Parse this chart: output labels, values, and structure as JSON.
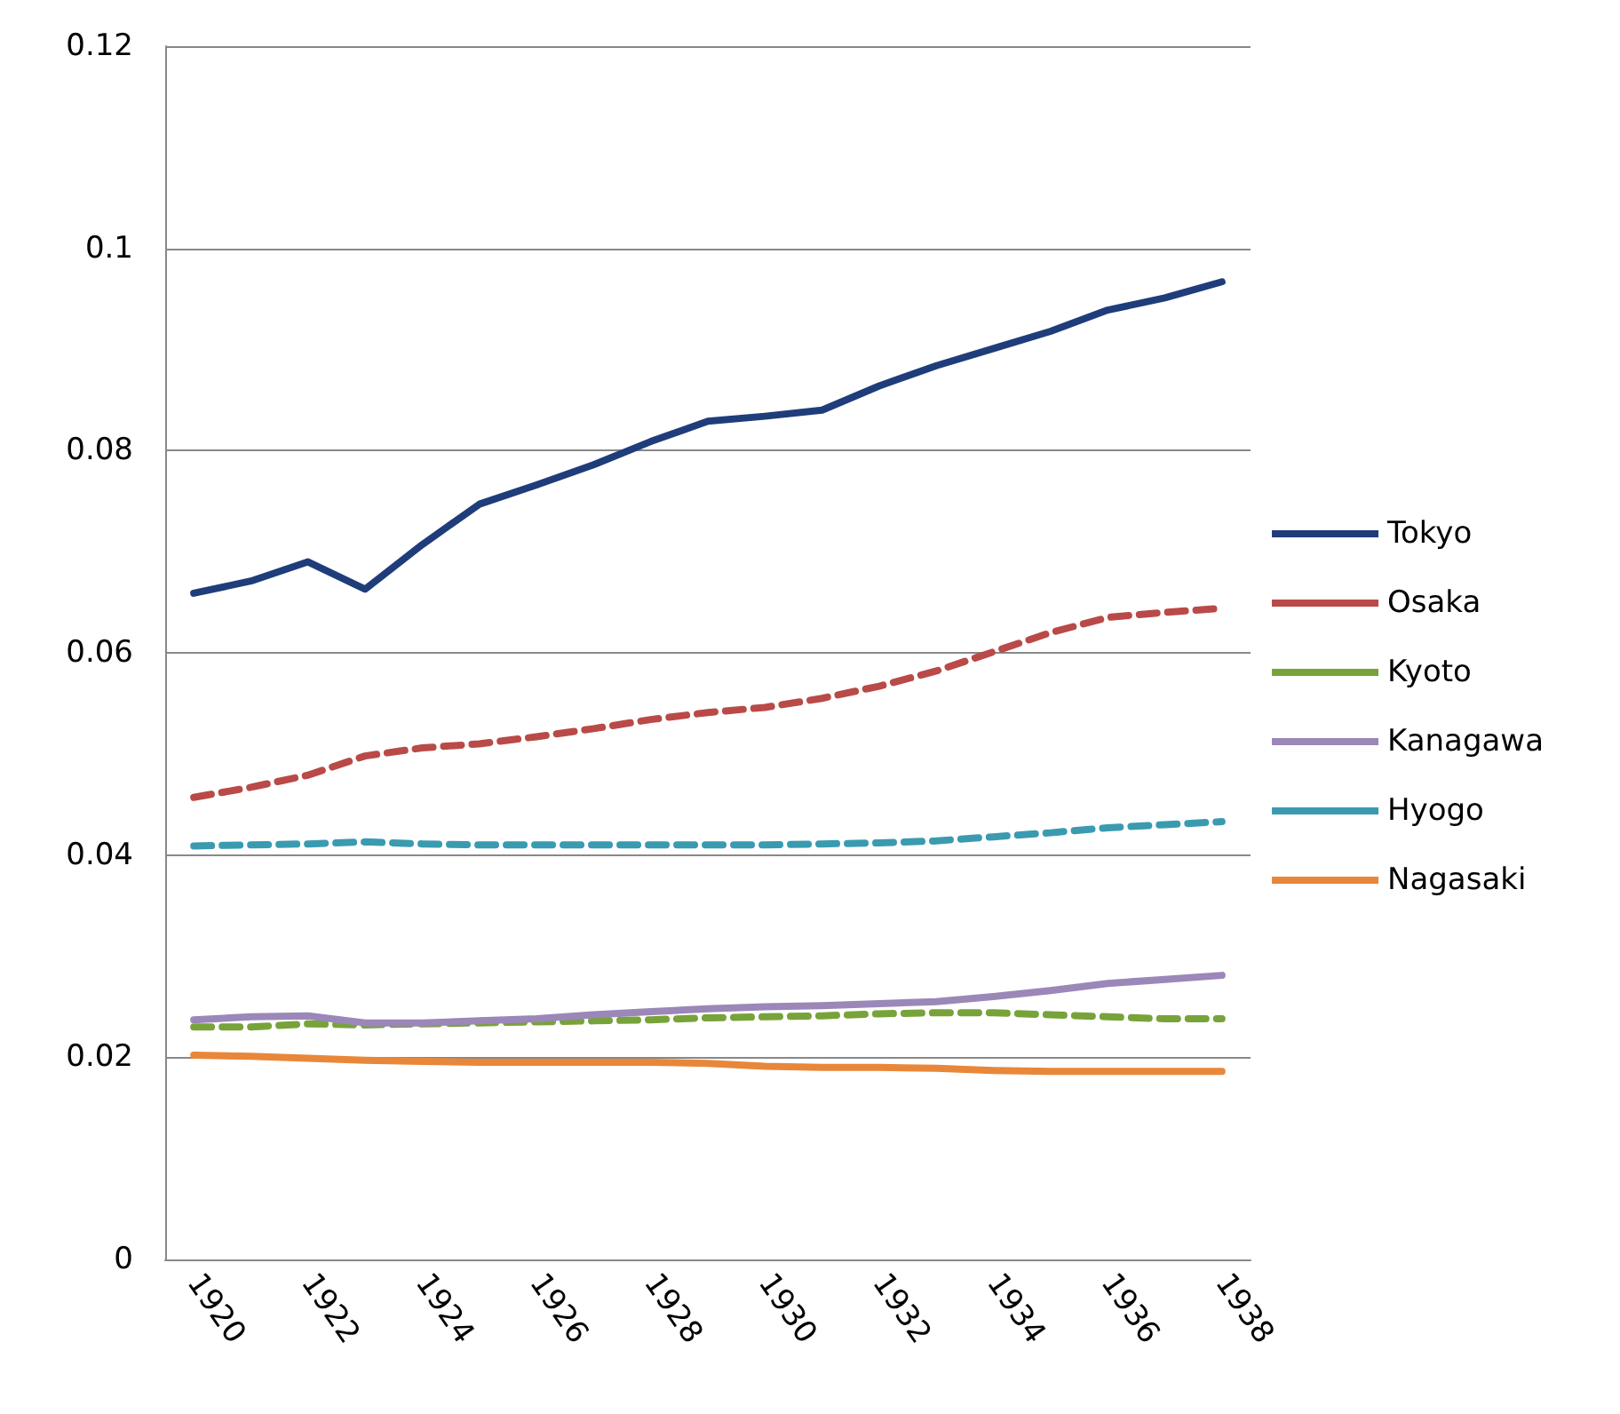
{
  "chart_data": {
    "type": "line",
    "categories": [
      "1920",
      null,
      "1922",
      null,
      "1924",
      null,
      "1926",
      null,
      "1928",
      null,
      "1930",
      null,
      "1932",
      null,
      "1934",
      null,
      "1936",
      null,
      "1938"
    ],
    "series": [
      {
        "name": "Tokyo",
        "color": "#1f3d7a",
        "line_style": "solid",
        "values": [
          0.0659,
          0.0671,
          0.069,
          0.0663,
          0.0707,
          0.0747,
          0.0766,
          0.0786,
          0.0809,
          0.0829,
          0.0834,
          0.084,
          0.0864,
          0.0884,
          0.0901,
          0.0918,
          0.0939,
          0.0951,
          0.0967
        ]
      },
      {
        "name": "Osaka",
        "color": "#b94a48",
        "line_style": "dashed",
        "values": [
          0.0457,
          0.0467,
          0.0479,
          0.0498,
          0.0506,
          0.051,
          0.0517,
          0.0525,
          0.0534,
          0.0541,
          0.0546,
          0.0555,
          0.0567,
          0.0582,
          0.0601,
          0.062,
          0.0635,
          0.064,
          0.0644
        ]
      },
      {
        "name": "Kyoto",
        "color": "#77a33a",
        "line_style": "dashed",
        "values": [
          0.023,
          0.023,
          0.0233,
          0.0232,
          0.0233,
          0.0234,
          0.0235,
          0.0236,
          0.0237,
          0.0239,
          0.024,
          0.0241,
          0.0243,
          0.0244,
          0.0244,
          0.0242,
          0.024,
          0.0238,
          0.0238
        ]
      },
      {
        "name": "Kanagawa",
        "color": "#9b87b8",
        "line_style": "solid",
        "values": [
          0.0237,
          0.024,
          0.0241,
          0.0234,
          0.0234,
          0.0236,
          0.0238,
          0.0242,
          0.0245,
          0.0248,
          0.025,
          0.0251,
          0.0253,
          0.0255,
          0.026,
          0.0266,
          0.0273,
          0.0277,
          0.0281
        ]
      },
      {
        "name": "Hyogo",
        "color": "#3a9bb0",
        "line_style": "dashed",
        "values": [
          0.0409,
          0.041,
          0.0411,
          0.0413,
          0.0411,
          0.041,
          0.041,
          0.041,
          0.041,
          0.041,
          0.041,
          0.0411,
          0.0412,
          0.0414,
          0.0418,
          0.0422,
          0.0427,
          0.043,
          0.0433
        ]
      },
      {
        "name": "Nagasaki",
        "color": "#e8873a",
        "line_style": "solid",
        "values": [
          0.0202,
          0.0201,
          0.0199,
          0.0197,
          0.0196,
          0.0195,
          0.0195,
          0.0195,
          0.0195,
          0.0194,
          0.0191,
          0.019,
          0.019,
          0.0189,
          0.0187,
          0.0186,
          0.0186,
          0.0186,
          0.0186
        ]
      }
    ],
    "ylim": [
      0,
      0.12
    ],
    "yticks": [
      0,
      0.02,
      0.04,
      0.06,
      0.08,
      0.1,
      0.12
    ],
    "grid": "y",
    "legend": "right",
    "marker": "none"
  }
}
